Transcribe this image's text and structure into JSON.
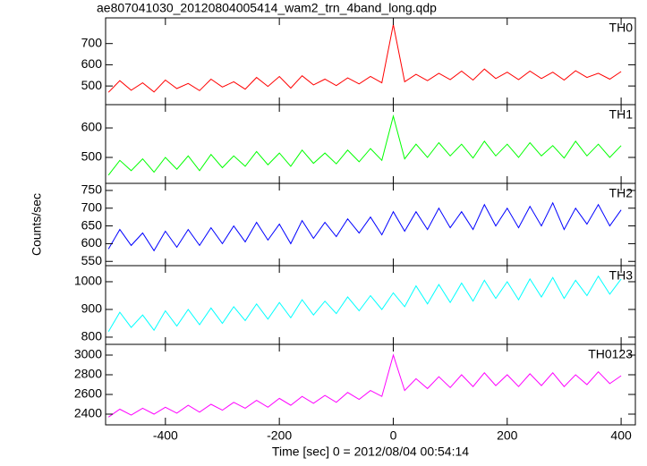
{
  "chart_data": [
    {
      "type": "line",
      "title": "ae807041030_20120804005414_wam2_trn_4band_long.qdp",
      "x": [
        -500,
        -480,
        -460,
        -440,
        -420,
        -400,
        -380,
        -360,
        -340,
        -320,
        -300,
        -280,
        -260,
        -240,
        -220,
        -200,
        -180,
        -160,
        -140,
        -120,
        -100,
        -80,
        -60,
        -40,
        -20,
        0,
        20,
        40,
        60,
        80,
        100,
        120,
        140,
        160,
        180,
        200,
        220,
        240,
        260,
        280,
        300,
        320,
        340,
        360,
        380,
        400
      ],
      "series": [
        {
          "name": "TH0",
          "color": "#ff0000",
          "values": [
            470,
            525,
            480,
            515,
            472,
            528,
            488,
            512,
            478,
            532,
            495,
            520,
            485,
            540,
            498,
            545,
            490,
            548,
            505,
            532,
            502,
            538,
            510,
            545,
            515,
            790,
            520,
            555,
            525,
            560,
            530,
            570,
            528,
            580,
            535,
            565,
            530,
            570,
            535,
            565,
            528,
            572,
            540,
            560,
            532,
            568
          ]
        }
      ],
      "xlim": [
        -505,
        425
      ],
      "xticks": [
        -400,
        -200,
        0,
        200,
        400
      ],
      "ylim": [
        412,
        821
      ],
      "yticks": [
        500,
        600,
        700
      ]
    },
    {
      "type": "line",
      "x": [
        -500,
        -480,
        -460,
        -440,
        -420,
        -400,
        -380,
        -360,
        -340,
        -320,
        -300,
        -280,
        -260,
        -240,
        -220,
        -200,
        -180,
        -160,
        -140,
        -120,
        -100,
        -80,
        -60,
        -40,
        -20,
        0,
        20,
        40,
        60,
        80,
        100,
        120,
        140,
        160,
        180,
        200,
        220,
        240,
        260,
        280,
        300,
        320,
        340,
        360,
        380,
        400
      ],
      "series": [
        {
          "name": "TH1",
          "color": "#00ff00",
          "values": [
            440,
            490,
            455,
            495,
            450,
            500,
            460,
            505,
            455,
            510,
            465,
            505,
            470,
            520,
            475,
            515,
            470,
            525,
            480,
            515,
            478,
            525,
            485,
            530,
            490,
            640,
            495,
            545,
            500,
            550,
            505,
            545,
            498,
            555,
            505,
            545,
            500,
            550,
            505,
            540,
            498,
            555,
            505,
            545,
            500,
            540
          ]
        }
      ],
      "xlim": [
        -505,
        425
      ],
      "xticks": [
        -400,
        -200,
        0,
        200,
        400
      ],
      "ylim": [
        412,
        679
      ],
      "yticks": [
        500,
        600
      ]
    },
    {
      "type": "line",
      "ylabel": "Counts/sec",
      "x": [
        -500,
        -480,
        -460,
        -440,
        -420,
        -400,
        -380,
        -360,
        -340,
        -320,
        -300,
        -280,
        -260,
        -240,
        -220,
        -200,
        -180,
        -160,
        -140,
        -120,
        -100,
        -80,
        -60,
        -40,
        -20,
        0,
        20,
        40,
        60,
        80,
        100,
        120,
        140,
        160,
        180,
        200,
        220,
        240,
        260,
        280,
        300,
        320,
        340,
        360,
        380,
        400
      ],
      "series": [
        {
          "name": "TH2",
          "color": "#0000ff",
          "values": [
            585,
            640,
            595,
            630,
            580,
            635,
            590,
            640,
            595,
            645,
            600,
            650,
            605,
            660,
            610,
            655,
            600,
            665,
            615,
            660,
            620,
            670,
            630,
            675,
            625,
            690,
            635,
            690,
            640,
            700,
            645,
            690,
            640,
            710,
            650,
            700,
            645,
            705,
            650,
            715,
            640,
            700,
            655,
            710,
            650,
            695
          ]
        }
      ],
      "xlim": [
        -505,
        425
      ],
      "xticks": [
        -400,
        -200,
        0,
        200,
        400
      ],
      "ylim": [
        538,
        770
      ],
      "yticks": [
        550,
        600,
        650,
        700,
        750
      ]
    },
    {
      "type": "line",
      "x": [
        -500,
        -480,
        -460,
        -440,
        -420,
        -400,
        -380,
        -360,
        -340,
        -320,
        -300,
        -280,
        -260,
        -240,
        -220,
        -200,
        -180,
        -160,
        -140,
        -120,
        -100,
        -80,
        -60,
        -40,
        -20,
        0,
        20,
        40,
        60,
        80,
        100,
        120,
        140,
        160,
        180,
        200,
        220,
        240,
        260,
        280,
        300,
        320,
        340,
        360,
        380,
        400
      ],
      "series": [
        {
          "name": "TH3",
          "color": "#00ffff",
          "values": [
            820,
            890,
            835,
            880,
            825,
            895,
            840,
            900,
            845,
            905,
            850,
            910,
            860,
            920,
            865,
            925,
            870,
            935,
            880,
            930,
            885,
            945,
            895,
            950,
            900,
            960,
            910,
            985,
            920,
            990,
            925,
            995,
            930,
            1005,
            940,
            1000,
            935,
            1010,
            945,
            1015,
            940,
            1005,
            950,
            1020,
            955,
            1010
          ]
        }
      ],
      "xlim": [
        -505,
        425
      ],
      "xticks": [
        -400,
        -200,
        0,
        200,
        400
      ],
      "ylim": [
        774,
        1058
      ],
      "yticks": [
        800,
        900,
        1000
      ]
    },
    {
      "type": "line",
      "xlabel": "Time [sec] 0 = 2012/08/04 00:54:14",
      "x": [
        -500,
        -480,
        -460,
        -440,
        -420,
        -400,
        -380,
        -360,
        -340,
        -320,
        -300,
        -280,
        -260,
        -240,
        -220,
        -200,
        -180,
        -160,
        -140,
        -120,
        -100,
        -80,
        -60,
        -40,
        -20,
        0,
        20,
        40,
        60,
        80,
        100,
        120,
        140,
        160,
        180,
        200,
        220,
        240,
        260,
        280,
        300,
        320,
        340,
        360,
        380,
        400
      ],
      "series": [
        {
          "name": "TH0123",
          "color": "#ff00ff",
          "values": [
            2370,
            2450,
            2390,
            2460,
            2400,
            2470,
            2410,
            2490,
            2420,
            2500,
            2440,
            2520,
            2460,
            2540,
            2470,
            2560,
            2490,
            2580,
            2510,
            2590,
            2520,
            2620,
            2550,
            2640,
            2580,
            3000,
            2640,
            2760,
            2660,
            2780,
            2670,
            2800,
            2680,
            2820,
            2690,
            2800,
            2680,
            2810,
            2690,
            2820,
            2680,
            2800,
            2700,
            2830,
            2710,
            2790
          ]
        }
      ],
      "xlim": [
        -505,
        425
      ],
      "xticks": [
        -400,
        -200,
        0,
        200,
        400
      ],
      "ylim": [
        2291,
        3109
      ],
      "yticks": [
        2400,
        2600,
        2800,
        3000
      ]
    }
  ]
}
